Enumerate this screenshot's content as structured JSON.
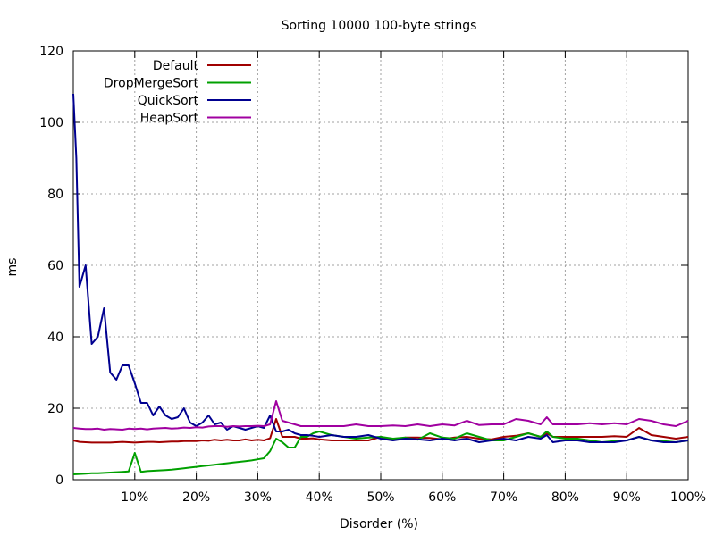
{
  "chart_data": {
    "type": "line",
    "title": "Sorting 10000 100-byte strings",
    "xlabel": "Disorder (%)",
    "ylabel": "ms",
    "xlim": [
      0,
      100
    ],
    "ylim": [
      0,
      120
    ],
    "x_ticks": [
      10,
      20,
      30,
      40,
      50,
      60,
      70,
      80,
      90,
      100
    ],
    "x_tick_labels": [
      "10%",
      "20%",
      "30%",
      "40%",
      "50%",
      "60%",
      "70%",
      "80%",
      "90%",
      "100%"
    ],
    "y_ticks": [
      0,
      20,
      40,
      60,
      80,
      100,
      120
    ],
    "y_tick_labels": [
      "0",
      "20",
      "40",
      "60",
      "80",
      "100",
      "120"
    ],
    "grid": true,
    "legend_position": "top-left",
    "series": [
      {
        "name": "Default",
        "color": "#a00000",
        "x": [
          0,
          1,
          2,
          3,
          4,
          5,
          6,
          7,
          8,
          9,
          10,
          11,
          12,
          13,
          14,
          15,
          16,
          17,
          18,
          19,
          20,
          21,
          22,
          23,
          24,
          25,
          26,
          27,
          28,
          29,
          30,
          31,
          32,
          33,
          34,
          35,
          36,
          37,
          38,
          39,
          40,
          42,
          44,
          46,
          48,
          50,
          52,
          54,
          56,
          58,
          60,
          62,
          64,
          66,
          68,
          70,
          72,
          74,
          76,
          77,
          78,
          80,
          82,
          84,
          86,
          88,
          90,
          92,
          94,
          96,
          98,
          100
        ],
        "y": [
          11.0,
          10.6,
          10.5,
          10.4,
          10.4,
          10.4,
          10.4,
          10.5,
          10.6,
          10.5,
          10.4,
          10.5,
          10.6,
          10.6,
          10.5,
          10.6,
          10.7,
          10.7,
          10.8,
          10.8,
          10.8,
          11.0,
          10.9,
          11.2,
          11.0,
          11.2,
          11.0,
          11.0,
          11.3,
          11.0,
          11.2,
          11.0,
          11.6,
          17.0,
          12.0,
          12.0,
          12.0,
          11.5,
          11.5,
          11.6,
          11.3,
          11.0,
          11.0,
          11.0,
          11.0,
          12.0,
          11.2,
          11.8,
          11.8,
          11.7,
          11.3,
          11.8,
          12.0,
          11.5,
          11.3,
          12.0,
          12.3,
          13.0,
          12.0,
          13.0,
          12.0,
          12.0,
          12.0,
          12.0,
          12.0,
          12.2,
          12.0,
          14.5,
          12.5,
          12.0,
          11.5,
          12.0
        ]
      },
      {
        "name": "DropMergeSort",
        "color": "#00a000",
        "x": [
          0,
          1,
          2,
          3,
          4,
          5,
          6,
          7,
          8,
          9,
          10,
          11,
          12,
          13,
          14,
          15,
          16,
          17,
          18,
          19,
          20,
          21,
          22,
          23,
          24,
          25,
          26,
          27,
          28,
          29,
          30,
          31,
          32,
          33,
          34,
          35,
          36,
          37,
          38,
          39,
          40,
          42,
          44,
          46,
          48,
          50,
          52,
          54,
          56,
          58,
          60,
          62,
          64,
          66,
          68,
          70,
          72,
          74,
          76,
          77,
          78,
          80,
          82,
          84,
          86,
          88,
          90,
          92,
          94,
          96,
          98,
          100
        ],
        "y": [
          1.5,
          1.6,
          1.7,
          1.8,
          1.8,
          1.9,
          2.0,
          2.1,
          2.2,
          2.3,
          7.5,
          2.2,
          2.4,
          2.5,
          2.6,
          2.7,
          2.8,
          3.0,
          3.2,
          3.4,
          3.6,
          3.8,
          4.0,
          4.2,
          4.4,
          4.6,
          4.8,
          5.0,
          5.2,
          5.4,
          5.7,
          6.0,
          8.0,
          11.5,
          10.5,
          9.0,
          9.0,
          12.0,
          12.0,
          13.0,
          13.5,
          12.5,
          12.0,
          11.5,
          11.8,
          12.0,
          11.5,
          11.8,
          11.2,
          13.0,
          11.8,
          11.5,
          13.0,
          12.0,
          11.0,
          11.0,
          12.0,
          13.0,
          12.0,
          13.5,
          12.0,
          11.5,
          11.5,
          11.0,
          10.5,
          10.8,
          11.0,
          12.0,
          11.0,
          10.8,
          10.5,
          11.0
        ]
      },
      {
        "name": "QuickSort",
        "color": "#000090",
        "x": [
          0,
          0.5,
          1,
          2,
          3,
          4,
          5,
          6,
          7,
          8,
          9,
          10,
          11,
          12,
          13,
          14,
          15,
          16,
          17,
          18,
          19,
          20,
          21,
          22,
          23,
          24,
          25,
          26,
          27,
          28,
          29,
          30,
          31,
          32,
          33,
          34,
          35,
          36,
          37,
          38,
          39,
          40,
          42,
          44,
          46,
          48,
          50,
          52,
          54,
          56,
          58,
          60,
          62,
          64,
          66,
          68,
          70,
          72,
          74,
          76,
          77,
          78,
          80,
          82,
          84,
          86,
          88,
          90,
          92,
          94,
          96,
          98,
          100
        ],
        "y": [
          108,
          90,
          54,
          60,
          38,
          40,
          48,
          30,
          28,
          32,
          32,
          27,
          21.5,
          21.5,
          18,
          20.5,
          18,
          17,
          17.5,
          20,
          16,
          15,
          16,
          18,
          15.5,
          16,
          14,
          15,
          14.5,
          14,
          14.5,
          15,
          14.5,
          18,
          13.5,
          13.5,
          14,
          13,
          12.5,
          12.5,
          12.3,
          12.0,
          12.5,
          12.0,
          12.0,
          12.5,
          11.5,
          11.0,
          11.5,
          11.3,
          11.0,
          11.5,
          11.0,
          11.5,
          10.5,
          11.0,
          11.5,
          11.0,
          12.0,
          11.5,
          12.5,
          10.5,
          11.0,
          11.0,
          10.5,
          10.5,
          10.5,
          11.0,
          12.0,
          11.0,
          10.5,
          10.5,
          11.0
        ]
      },
      {
        "name": "HeapSort",
        "color": "#a000a0",
        "x": [
          0,
          1,
          2,
          3,
          4,
          5,
          6,
          7,
          8,
          9,
          10,
          11,
          12,
          13,
          14,
          15,
          16,
          17,
          18,
          19,
          20,
          21,
          22,
          23,
          24,
          25,
          26,
          27,
          28,
          29,
          30,
          31,
          32,
          33,
          34,
          35,
          36,
          37,
          38,
          39,
          40,
          42,
          44,
          46,
          48,
          50,
          52,
          54,
          56,
          58,
          60,
          62,
          64,
          66,
          68,
          70,
          72,
          74,
          76,
          77,
          78,
          80,
          82,
          84,
          86,
          88,
          90,
          92,
          94,
          96,
          98,
          100
        ],
        "y": [
          14.5,
          14.3,
          14.2,
          14.2,
          14.3,
          14.0,
          14.2,
          14.1,
          14.0,
          14.3,
          14.2,
          14.3,
          14.1,
          14.3,
          14.4,
          14.5,
          14.3,
          14.4,
          14.6,
          14.5,
          14.7,
          14.6,
          14.9,
          15.0,
          15.0,
          14.8,
          15.0,
          14.9,
          15.0,
          15.0,
          15.1,
          15.0,
          15.5,
          22.0,
          16.5,
          16.0,
          15.5,
          15.0,
          15.0,
          15.0,
          15.0,
          15.0,
          15.0,
          15.5,
          15.0,
          15.0,
          15.2,
          15.0,
          15.5,
          15.0,
          15.5,
          15.2,
          16.5,
          15.3,
          15.5,
          15.5,
          17.0,
          16.5,
          15.5,
          17.5,
          15.5,
          15.5,
          15.5,
          15.8,
          15.5,
          15.8,
          15.5,
          17.0,
          16.5,
          15.5,
          15.0,
          16.5
        ]
      }
    ]
  }
}
